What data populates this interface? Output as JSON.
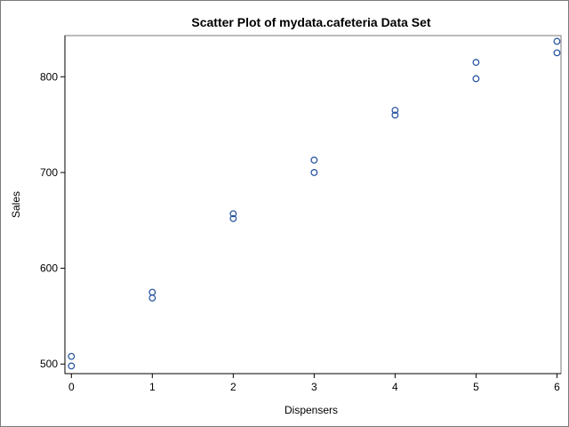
{
  "chart_data": {
    "type": "scatter",
    "title": "Scatter Plot of mydata.cafeteria Data Set",
    "xlabel": "Dispensers",
    "ylabel": "Sales",
    "x_ticks": [
      "0",
      "1",
      "2",
      "3",
      "4",
      "5",
      "6"
    ],
    "y_ticks": [
      "500",
      "600",
      "700",
      "800"
    ],
    "xlim": [
      -0.08,
      6.05
    ],
    "ylim": [
      490,
      843
    ],
    "grid": false,
    "legend": "none",
    "marker_color": "#1f4e9c",
    "points": [
      {
        "x": 0,
        "y": 508
      },
      {
        "x": 0,
        "y": 498
      },
      {
        "x": 1,
        "y": 575
      },
      {
        "x": 1,
        "y": 569
      },
      {
        "x": 2,
        "y": 657
      },
      {
        "x": 2,
        "y": 652
      },
      {
        "x": 3,
        "y": 713
      },
      {
        "x": 3,
        "y": 700
      },
      {
        "x": 4,
        "y": 765
      },
      {
        "x": 4,
        "y": 760
      },
      {
        "x": 5,
        "y": 815
      },
      {
        "x": 5,
        "y": 798
      },
      {
        "x": 6,
        "y": 837
      },
      {
        "x": 6,
        "y": 825
      }
    ]
  }
}
